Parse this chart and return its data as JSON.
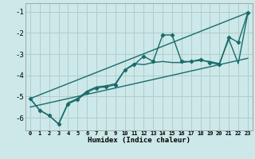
{
  "xlabel": "Humidex (Indice chaleur)",
  "bg_color": "#cce8e8",
  "grid_color": "#b0cccc",
  "line_color": "#1a6b6b",
  "xlim": [
    -0.5,
    23.5
  ],
  "ylim": [
    -6.6,
    -0.6
  ],
  "yticks": [
    -6,
    -5,
    -4,
    -3,
    -2,
    -1
  ],
  "xticks": [
    0,
    1,
    2,
    3,
    4,
    5,
    6,
    7,
    8,
    9,
    10,
    11,
    12,
    13,
    14,
    15,
    16,
    17,
    18,
    19,
    20,
    21,
    22,
    23
  ],
  "series_zigzag_x": [
    0,
    1,
    2,
    3,
    4,
    5,
    6,
    7,
    8,
    9,
    10,
    11,
    12,
    13,
    14,
    15,
    16,
    17,
    18,
    19,
    20,
    21,
    22,
    23
  ],
  "series_zigzag_y": [
    -5.1,
    -5.65,
    -5.9,
    -6.3,
    -5.35,
    -5.15,
    -4.8,
    -4.6,
    -4.55,
    -4.45,
    -3.75,
    -3.5,
    -3.1,
    -3.35,
    -2.1,
    -2.1,
    -3.35,
    -3.35,
    -3.25,
    -3.4,
    -3.5,
    -2.2,
    -2.45,
    -1.05
  ],
  "series_smooth_x": [
    0,
    1,
    2,
    3,
    4,
    5,
    6,
    7,
    8,
    9,
    10,
    11,
    12,
    13,
    14,
    15,
    16,
    17,
    18,
    19,
    20,
    21,
    22,
    23
  ],
  "series_smooth_y": [
    -5.1,
    -5.65,
    -5.9,
    -6.3,
    -5.3,
    -5.1,
    -4.75,
    -4.55,
    -4.5,
    -4.4,
    -3.75,
    -3.45,
    -3.5,
    -3.4,
    -3.35,
    -3.4,
    -3.4,
    -3.35,
    -3.3,
    -3.35,
    -3.45,
    -2.3,
    -3.45,
    -1.1
  ],
  "line1_x": [
    0,
    23
  ],
  "line1_y": [
    -5.1,
    -1.05
  ],
  "line2_x": [
    0,
    23
  ],
  "line2_y": [
    -5.5,
    -3.2
  ]
}
